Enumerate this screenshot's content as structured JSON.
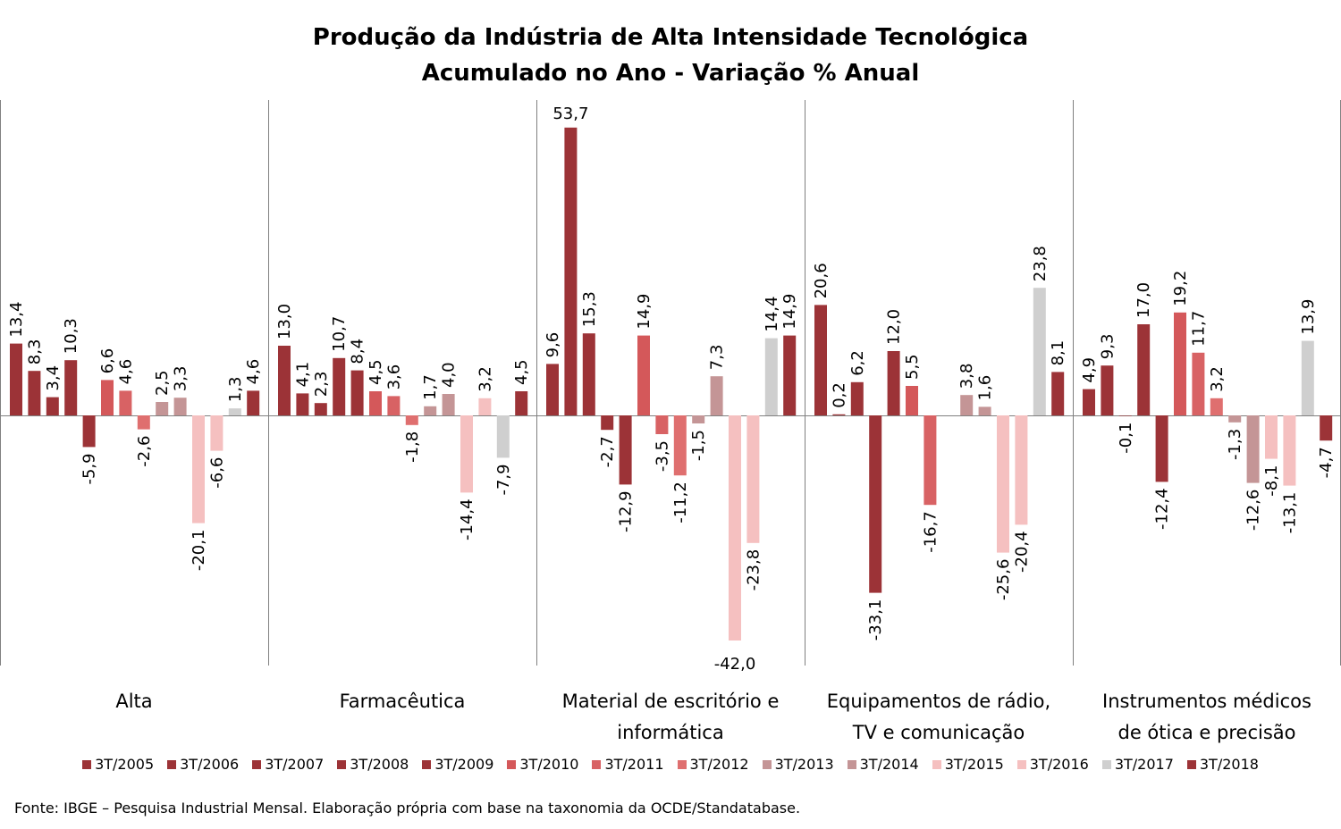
{
  "chart_data": {
    "type": "bar",
    "title": "Produção da Indústria de Alta Intensidade Tecnológica",
    "subtitle": "Acumulado no Ano - Variação % Anual",
    "categories": [
      "Alta",
      "Farmacêutica",
      "Material de escritório e informática",
      "Equipamentos de rádio, TV e comunicação",
      "Instrumentos médicos de ótica e precisão"
    ],
    "category_lines": [
      [
        "Alta"
      ],
      [
        "Farmacêutica"
      ],
      [
        "Material de escritório e",
        "informática"
      ],
      [
        "Equipamentos de rádio,",
        "TV e comunicação"
      ],
      [
        "Instrumentos médicos",
        "de ótica e precisão"
      ]
    ],
    "series": [
      {
        "name": "3T/2005",
        "color": "#9c3337",
        "values": [
          13.4,
          13.0,
          9.6,
          20.6,
          4.9
        ]
      },
      {
        "name": "3T/2006",
        "color": "#9c3337",
        "values": [
          8.3,
          4.1,
          53.7,
          0.2,
          9.3
        ]
      },
      {
        "name": "3T/2007",
        "color": "#9c3337",
        "values": [
          3.4,
          2.3,
          15.3,
          6.2,
          -0.1
        ]
      },
      {
        "name": "3T/2008",
        "color": "#9c3337",
        "values": [
          10.3,
          10.7,
          -2.7,
          -33.1,
          17.0
        ]
      },
      {
        "name": "3T/2009",
        "color": "#9c3337",
        "values": [
          -5.9,
          8.4,
          -12.9,
          12.0,
          -12.4
        ]
      },
      {
        "name": "3T/2010",
        "color": "#d4585a",
        "values": [
          6.6,
          4.5,
          14.9,
          5.5,
          19.2
        ]
      },
      {
        "name": "3T/2011",
        "color": "#d86264",
        "values": [
          4.6,
          3.6,
          -3.5,
          -16.7,
          11.7
        ]
      },
      {
        "name": "3T/2012",
        "color": "#df6f6f",
        "values": [
          -2.6,
          -1.8,
          -11.2,
          null,
          3.2
        ]
      },
      {
        "name": "3T/2013",
        "color": "#c49596",
        "values": [
          2.5,
          1.7,
          -1.5,
          3.8,
          -1.3
        ]
      },
      {
        "name": "3T/2014",
        "color": "#c49596",
        "values": [
          3.3,
          4.0,
          7.3,
          1.6,
          -12.6
        ]
      },
      {
        "name": "3T/2015",
        "color": "#f5c0c0",
        "values": [
          -20.1,
          -14.4,
          -42.0,
          -25.6,
          -8.1
        ]
      },
      {
        "name": "3T/2016",
        "color": "#f5c0c0",
        "values": [
          -6.6,
          3.2,
          -23.8,
          -20.4,
          -13.1
        ]
      },
      {
        "name": "3T/2017",
        "color": "#cfcfcf",
        "values": [
          1.3,
          -7.9,
          14.4,
          23.8,
          13.9
        ]
      },
      {
        "name": "3T/2018",
        "color": "#9c3337",
        "values": [
          4.6,
          4.5,
          14.9,
          8.1,
          -4.7
        ]
      }
    ],
    "legend_position": "bottom",
    "grid": false
  },
  "source_note": "Fonte: IBGE – Pesquisa Industrial Mensal. Elaboração própria com base na taxonomia da OCDE/Standatabase."
}
